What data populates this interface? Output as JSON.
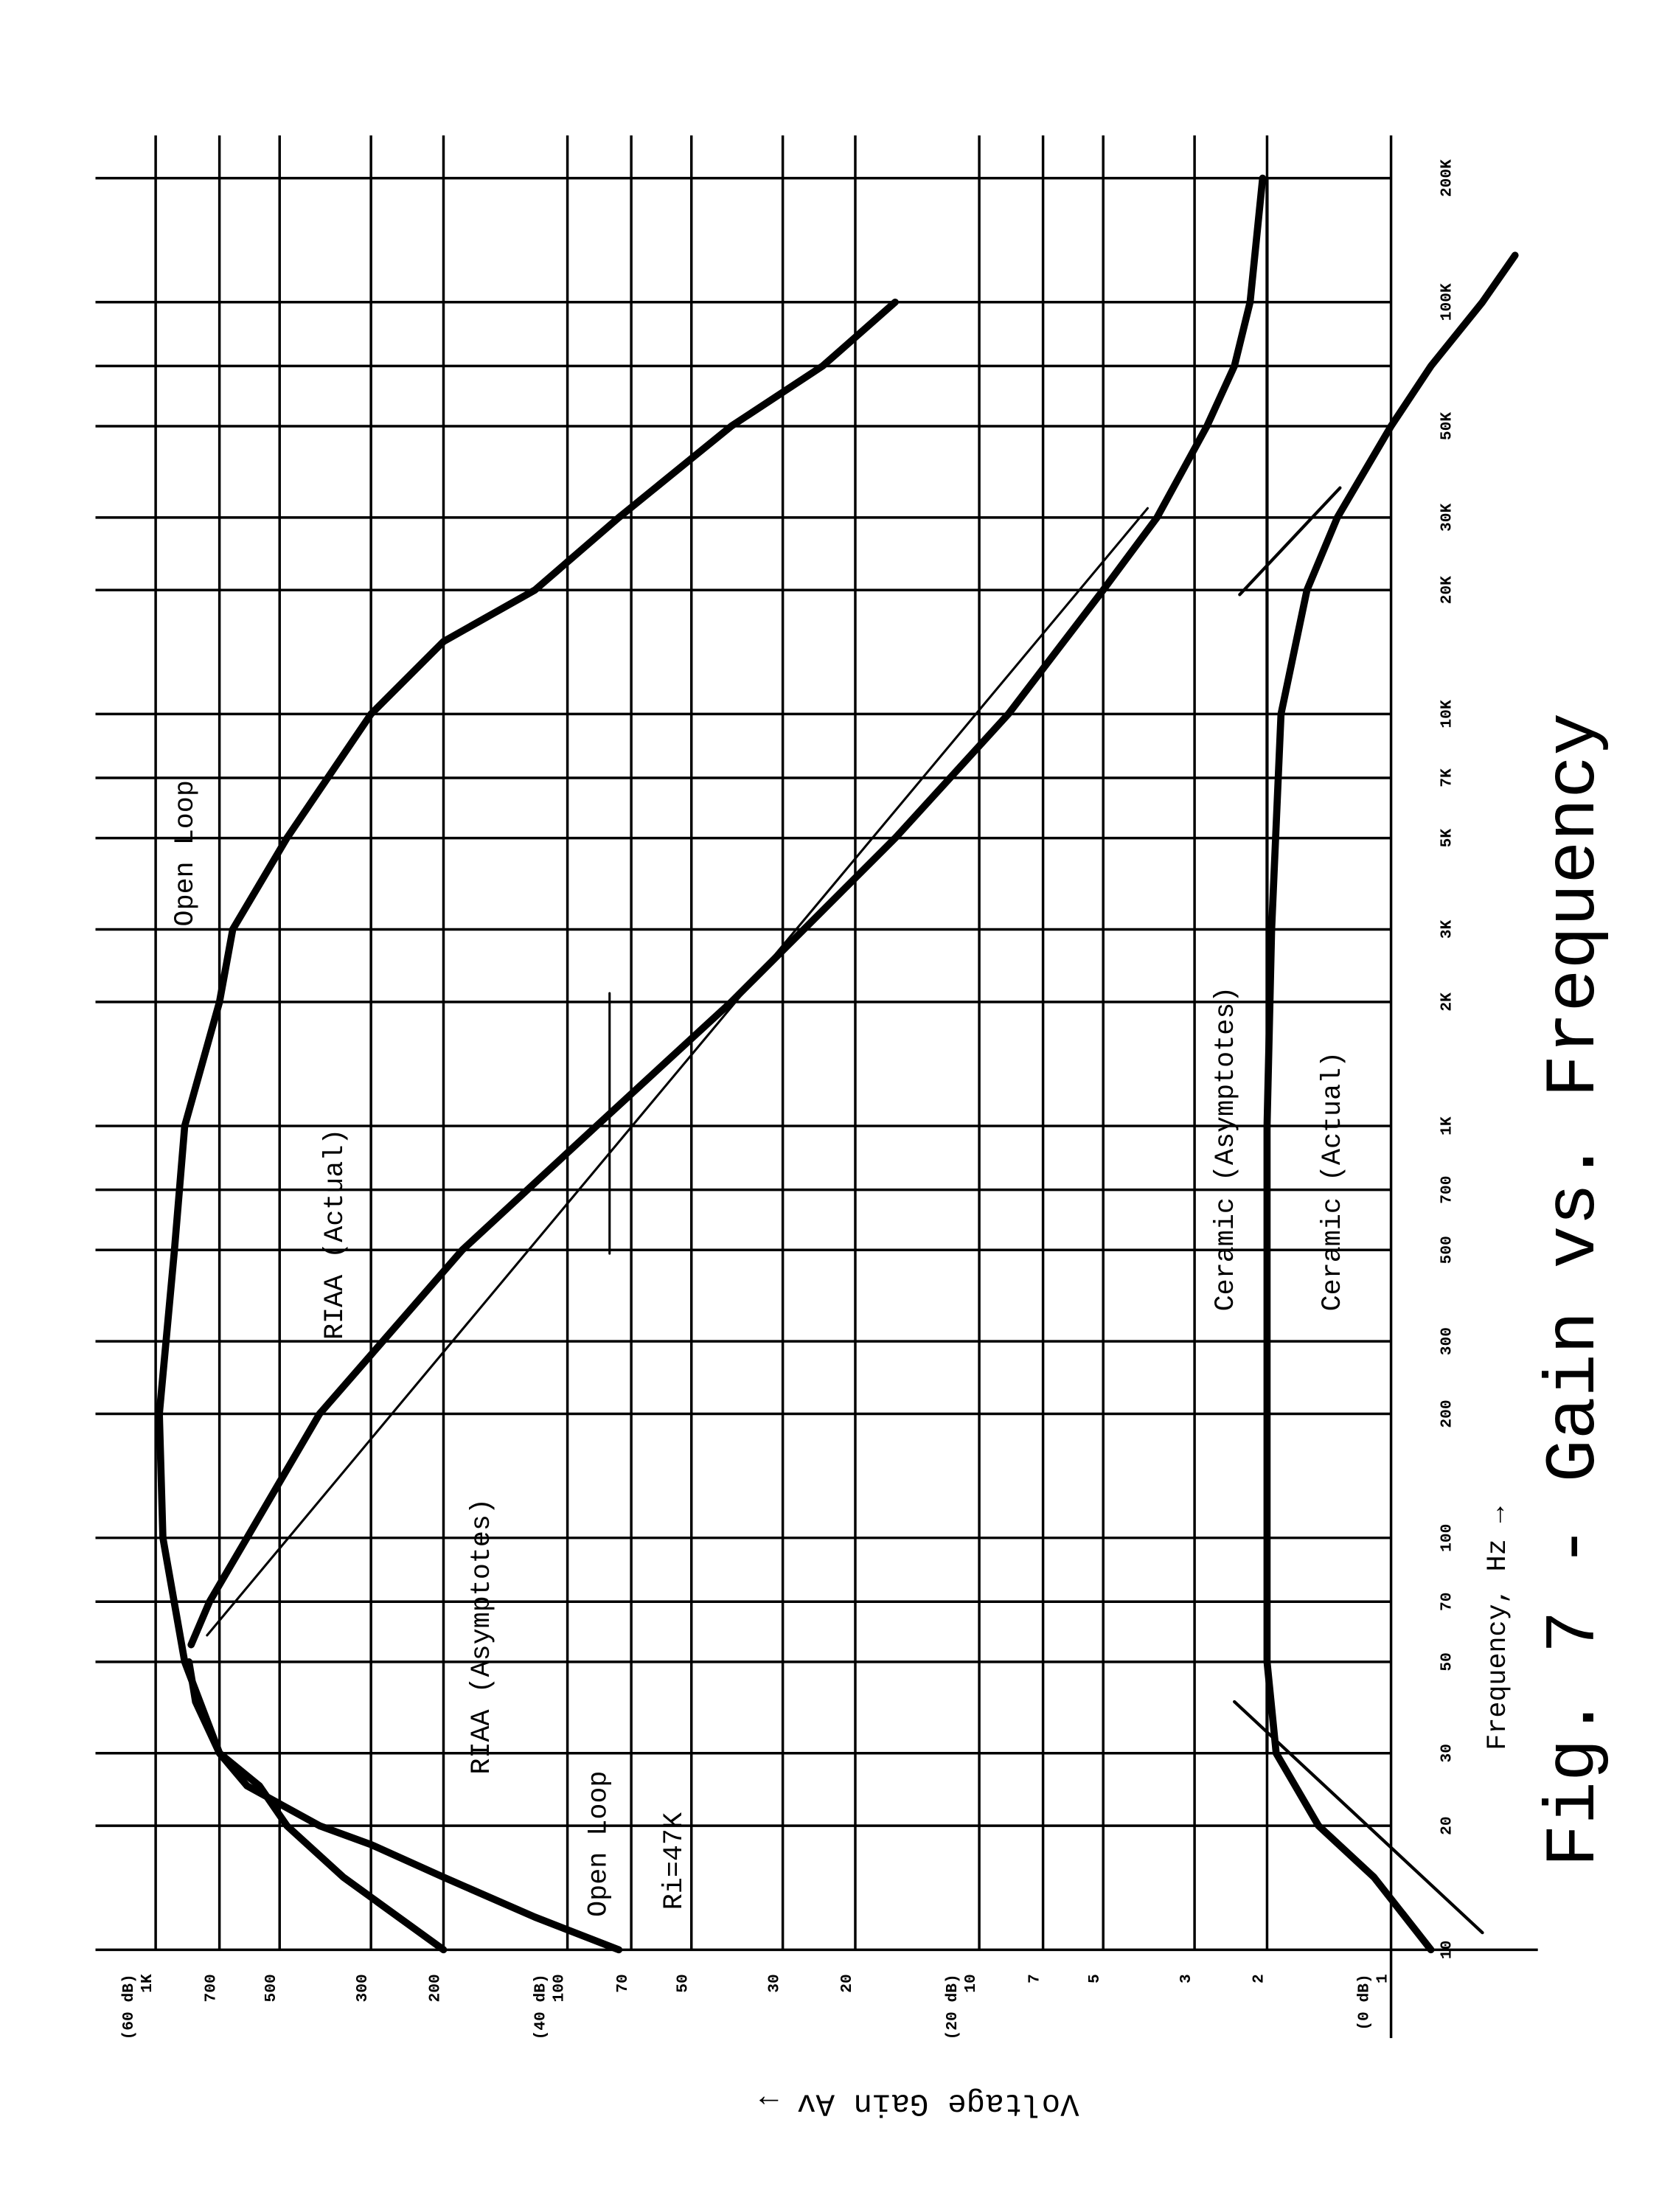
{
  "chart_data": {
    "type": "line",
    "title": "Fig. 7 - Gain vs. Frequency",
    "xlabel": "Frequency, Hz →",
    "ylabel": "Voltage Gain Av →",
    "xscale": "log",
    "yscale": "log",
    "grid": true,
    "xlim": [
      10,
      200000
    ],
    "ylim": [
      0.44,
      1400
    ],
    "xticks": [
      10,
      20,
      30,
      50,
      70,
      100,
      200,
      300,
      500,
      700,
      {
        "value": 1000,
        "label": "1K"
      },
      {
        "value": 2000,
        "label": "2K"
      },
      {
        "value": 3000,
        "label": "3K"
      },
      {
        "value": 5000,
        "label": "5K"
      },
      {
        "value": 7000,
        "label": "7K"
      },
      {
        "value": 10000,
        "label": "10K"
      },
      {
        "value": 20000,
        "label": "20K"
      },
      {
        "value": 30000,
        "label": "30K"
      },
      {
        "value": 50000,
        "label": "50K"
      },
      {
        "value": 100000,
        "label": "100K"
      },
      {
        "value": 200000,
        "label": "200K"
      }
    ],
    "xminor": [
      70000
    ],
    "yticks": [
      1,
      2,
      3,
      5,
      7,
      10,
      20,
      30,
      50,
      70,
      100,
      200,
      300,
      500,
      700,
      {
        "value": 1000,
        "label": "1K"
      }
    ],
    "ytick_db_labels": [
      {
        "value": 1000,
        "label": "(60 dB)"
      },
      {
        "value": 100,
        "label": "(40 dB)"
      },
      {
        "value": 10,
        "label": "(20 dB)"
      },
      {
        "value": 1,
        "label": "(0 dB)"
      }
    ],
    "annotations": [
      "Ri=47K"
    ],
    "series": [
      {
        "name": "Open Loop",
        "color": "#000000",
        "x": [
          10,
          15,
          20,
          25,
          30,
          50,
          100,
          200,
          500,
          1000,
          2000,
          3000,
          5000,
          10000,
          15000,
          20000,
          30000,
          50000,
          70000,
          100000
        ],
        "values": [
          200,
          350,
          480,
          560,
          700,
          850,
          960,
          980,
          900,
          850,
          700,
          650,
          480,
          300,
          200,
          120,
          75,
          40,
          24,
          16
        ]
      },
      {
        "name": "Open Loop",
        "color": "#000000",
        "x": [
          10,
          12,
          15,
          18,
          20,
          25,
          30,
          40,
          50
        ],
        "values": [
          75,
          120,
          200,
          300,
          400,
          600,
          700,
          800,
          830
        ]
      },
      {
        "name": "RIAA (Actual)",
        "color": "#000000",
        "x": [
          55,
          70,
          100,
          200,
          500,
          1000,
          2000,
          5000,
          10000,
          20000,
          30000,
          50000,
          70000,
          100000,
          200000
        ],
        "values": [
          820,
          740,
          600,
          400,
          180,
          85,
          40,
          16,
          8.5,
          5,
          3.7,
          2.8,
          2.4,
          2.2,
          2.05
        ]
      },
      {
        "name": "RIAA (Asymptotes)",
        "color": "#000000",
        "x": [
          58,
          31600,
          1000,
          490,
          2100
        ],
        "values": [
          750,
          3.9,
          null,
          79,
          79
        ]
      },
      {
        "name": "Ceramic (Asymptotes)",
        "color": "#000000",
        "x": [
          30,
          200000,
          1000,
          11,
          40,
          1000,
          19500,
          35400
        ],
        "values": [
          2,
          2,
          null,
          0.6,
          2.4,
          null,
          2.33,
          1.33
        ]
      },
      {
        "name": "Ceramic (Actual)",
        "color": "#000000",
        "x": [
          10,
          15,
          20,
          30,
          50,
          100,
          1000,
          3000,
          10000,
          20000,
          30000,
          50000,
          70000,
          100000,
          130000
        ],
        "values": [
          0.8,
          1.1,
          1.5,
          1.9,
          2.0,
          2.0,
          2.0,
          1.95,
          1.85,
          1.6,
          1.35,
          1.0,
          0.8,
          0.6,
          0.5
        ]
      }
    ]
  }
}
